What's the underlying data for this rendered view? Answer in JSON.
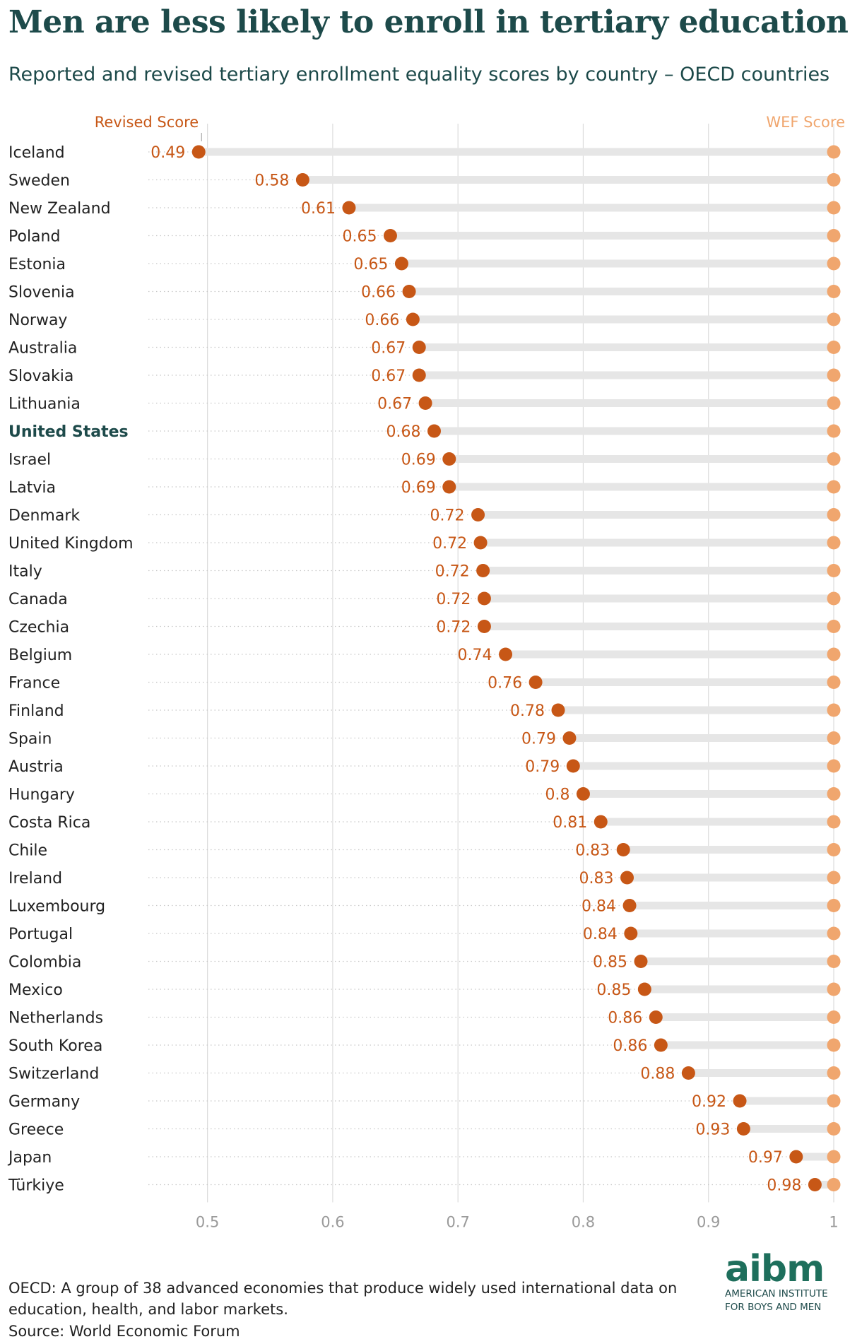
{
  "title": "Men are less likely to enroll in tertiary education",
  "subtitle": "Reported and revised tertiary enrollment equality scores by country – OECD countries",
  "footnote": "OECD: A group of 38 advanced economies that produce widely used international data on education, health, and labor markets.",
  "source": "Source: World Economic Forum",
  "logo": {
    "word": "aibm",
    "line1": "AMERICAN INSTITUTE",
    "line2": "FOR BOYS AND MEN"
  },
  "colors": {
    "revised": "#c75716",
    "wef": "#f0a66e",
    "bar": "#e6e6e6",
    "title": "#1d4a4a",
    "logo": "#1e6f5c"
  },
  "chart_data": {
    "type": "dumbbell",
    "legend": {
      "revised": "Revised Score",
      "wef": "WEF Score"
    },
    "highlight": "United States",
    "xlim": [
      0.45,
      1.0
    ],
    "xticks": [
      0.5,
      0.6,
      0.7,
      0.8,
      0.9,
      1
    ],
    "xtick_labels": [
      "0.5",
      "0.6",
      "0.7",
      "0.8",
      "0.9",
      "1"
    ],
    "rows": [
      {
        "country": "Iceland",
        "revised": 0.493,
        "label": "0.49",
        "wef": 1.0
      },
      {
        "country": "Sweden",
        "revised": 0.576,
        "label": "0.58",
        "wef": 1.0
      },
      {
        "country": "New Zealand",
        "revised": 0.613,
        "label": "0.61",
        "wef": 1.0
      },
      {
        "country": "Poland",
        "revised": 0.646,
        "label": "0.65",
        "wef": 1.0
      },
      {
        "country": "Estonia",
        "revised": 0.655,
        "label": "0.65",
        "wef": 1.0
      },
      {
        "country": "Slovenia",
        "revised": 0.661,
        "label": "0.66",
        "wef": 1.0
      },
      {
        "country": "Norway",
        "revised": 0.664,
        "label": "0.66",
        "wef": 1.0
      },
      {
        "country": "Australia",
        "revised": 0.669,
        "label": "0.67",
        "wef": 1.0
      },
      {
        "country": "Slovakia",
        "revised": 0.669,
        "label": "0.67",
        "wef": 1.0
      },
      {
        "country": "Lithuania",
        "revised": 0.674,
        "label": "0.67",
        "wef": 1.0
      },
      {
        "country": "United States",
        "revised": 0.681,
        "label": "0.68",
        "wef": 1.0
      },
      {
        "country": "Israel",
        "revised": 0.693,
        "label": "0.69",
        "wef": 1.0
      },
      {
        "country": "Latvia",
        "revised": 0.693,
        "label": "0.69",
        "wef": 1.0
      },
      {
        "country": "Denmark",
        "revised": 0.716,
        "label": "0.72",
        "wef": 1.0
      },
      {
        "country": "United Kingdom",
        "revised": 0.718,
        "label": "0.72",
        "wef": 1.0
      },
      {
        "country": "Italy",
        "revised": 0.72,
        "label": "0.72",
        "wef": 1.0
      },
      {
        "country": "Canada",
        "revised": 0.721,
        "label": "0.72",
        "wef": 1.0
      },
      {
        "country": "Czechia",
        "revised": 0.721,
        "label": "0.72",
        "wef": 1.0
      },
      {
        "country": "Belgium",
        "revised": 0.738,
        "label": "0.74",
        "wef": 1.0
      },
      {
        "country": "France",
        "revised": 0.762,
        "label": "0.76",
        "wef": 1.0
      },
      {
        "country": "Finland",
        "revised": 0.78,
        "label": "0.78",
        "wef": 1.0
      },
      {
        "country": "Spain",
        "revised": 0.789,
        "label": "0.79",
        "wef": 1.0
      },
      {
        "country": "Austria",
        "revised": 0.792,
        "label": "0.79",
        "wef": 1.0
      },
      {
        "country": "Hungary",
        "revised": 0.8,
        "label": "0.8",
        "wef": 1.0
      },
      {
        "country": "Costa Rica",
        "revised": 0.814,
        "label": "0.81",
        "wef": 1.0
      },
      {
        "country": "Chile",
        "revised": 0.832,
        "label": "0.83",
        "wef": 1.0
      },
      {
        "country": "Ireland",
        "revised": 0.835,
        "label": "0.83",
        "wef": 1.0
      },
      {
        "country": "Luxembourg",
        "revised": 0.837,
        "label": "0.84",
        "wef": 1.0
      },
      {
        "country": "Portugal",
        "revised": 0.838,
        "label": "0.84",
        "wef": 1.0
      },
      {
        "country": "Colombia",
        "revised": 0.846,
        "label": "0.85",
        "wef": 1.0
      },
      {
        "country": "Mexico",
        "revised": 0.849,
        "label": "0.85",
        "wef": 1.0
      },
      {
        "country": "Netherlands",
        "revised": 0.858,
        "label": "0.86",
        "wef": 1.0
      },
      {
        "country": "South Korea",
        "revised": 0.862,
        "label": "0.86",
        "wef": 1.0
      },
      {
        "country": "Switzerland",
        "revised": 0.884,
        "label": "0.88",
        "wef": 1.0
      },
      {
        "country": "Germany",
        "revised": 0.925,
        "label": "0.92",
        "wef": 1.0
      },
      {
        "country": "Greece",
        "revised": 0.928,
        "label": "0.93",
        "wef": 1.0
      },
      {
        "country": "Japan",
        "revised": 0.97,
        "label": "0.97",
        "wef": 1.0
      },
      {
        "country": "Türkiye",
        "revised": 0.985,
        "label": "0.98",
        "wef": 1.0
      }
    ]
  }
}
